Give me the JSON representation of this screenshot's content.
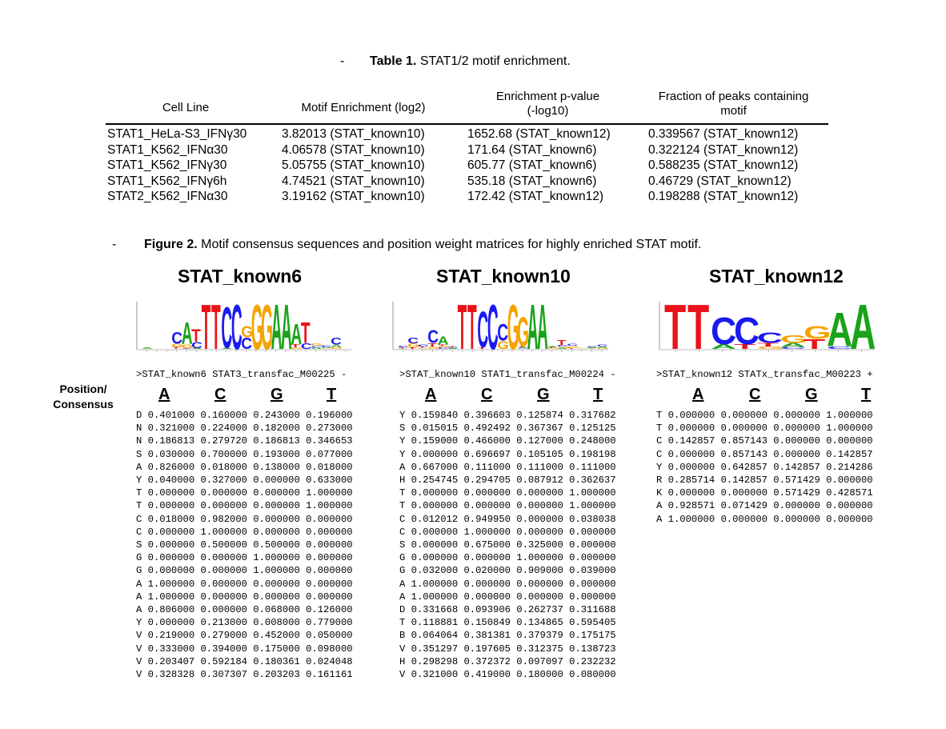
{
  "table1": {
    "dash": "-",
    "caption_bold": "Table 1.",
    "caption_text": "STAT1/2 motif enrichment.",
    "headers": [
      "Cell Line",
      "Motif Enrichment (log2)",
      "Enrichment p-value\n(-log10)",
      "Fraction of peaks containing\nmotif"
    ],
    "rows": [
      [
        "STAT1_HeLa-S3_IFNγ30",
        "3.82013 (STAT_known10)",
        "1652.68 (STAT_known12)",
        "0.339567 (STAT_known12)"
      ],
      [
        "STAT1_K562_IFNα30",
        "4.06578 (STAT_known10)",
        "171.64 (STAT_known6)",
        "0.322124 (STAT_known12)"
      ],
      [
        "STAT1_K562_IFNγ30",
        "5.05755 (STAT_known10)",
        "605.77 (STAT_known6)",
        "0.588235 (STAT_known12)"
      ],
      [
        "STAT1_K562_IFNγ6h",
        "4.74521 (STAT_known10)",
        "535.18 (STAT_known6)",
        "0.46729 (STAT_known12)"
      ],
      [
        "STAT2_K562_IFNα30",
        "3.19162 (STAT_known10)",
        "172.42 (STAT_known12)",
        "0.198288 (STAT_known12)"
      ]
    ]
  },
  "figure2": {
    "dash": "-",
    "caption_bold": "Figure 2.",
    "caption_text": "Motif consensus sequences and position weight matrices for highly enriched STAT motif.",
    "position_label": "Position/\nConsensus",
    "bases": [
      "A",
      "C",
      "G",
      "T"
    ],
    "colors": {
      "A": "#1aa31a",
      "C": "#1a1af0",
      "G": "#f5a300",
      "T": "#e8141a"
    },
    "motifs": [
      {
        "title": "STAT_known6",
        "header": ">STAT_known6 STAT3_transfac_M00225 -",
        "logo": "CATTCCGGAAATC",
        "rows": [
          "D 0.401000 0.160000 0.243000 0.196000",
          "N 0.321000 0.224000 0.182000 0.273000",
          "N 0.186813 0.279720 0.186813 0.346653",
          "S 0.030000 0.700000 0.193000 0.077000",
          "A 0.826000 0.018000 0.138000 0.018000",
          "Y 0.040000 0.327000 0.000000 0.633000",
          "T 0.000000 0.000000 0.000000 1.000000",
          "T 0.000000 0.000000 0.000000 1.000000",
          "C 0.018000 0.982000 0.000000 0.000000",
          "C 0.000000 1.000000 0.000000 0.000000",
          "S 0.000000 0.500000 0.500000 0.000000",
          "G 0.000000 0.000000 1.000000 0.000000",
          "G 0.000000 0.000000 1.000000 0.000000",
          "A 1.000000 0.000000 0.000000 0.000000",
          "A 1.000000 0.000000 0.000000 0.000000",
          "A 0.806000 0.000000 0.068000 0.126000",
          "Y 0.000000 0.213000 0.008000 0.779000",
          "V 0.219000 0.279000 0.452000 0.050000",
          "V 0.333000 0.394000 0.175000 0.098000",
          "V 0.203407 0.592184 0.180361 0.024048",
          "V 0.328328 0.307307 0.203203 0.161161"
        ]
      },
      {
        "title": "STAT_known10",
        "header": ">STAT_known10 STAT1_transfac_M00224 -",
        "logo": "CATTCCGGAA",
        "rows": [
          "Y 0.159840 0.396603 0.125874 0.317682",
          "S 0.015015 0.492492 0.367367 0.125125",
          "Y 0.159000 0.466000 0.127000 0.248000",
          "Y 0.000000 0.696697 0.105105 0.198198",
          "A 0.667000 0.111000 0.111000 0.111000",
          "H 0.254745 0.294705 0.087912 0.362637",
          "T 0.000000 0.000000 0.000000 1.000000",
          "T 0.000000 0.000000 0.000000 1.000000",
          "C 0.012012 0.949950 0.000000 0.038038",
          "C 0.000000 1.000000 0.000000 0.000000",
          "S 0.000000 0.675000 0.325000 0.000000",
          "G 0.000000 0.000000 1.000000 0.000000",
          "G 0.032000 0.020000 0.909000 0.039000",
          "A 1.000000 0.000000 0.000000 0.000000",
          "A 1.000000 0.000000 0.000000 0.000000",
          "D 0.331668 0.093906 0.262737 0.311688",
          "T 0.118881 0.150849 0.134865 0.595405",
          "B 0.064064 0.381381 0.379379 0.175175",
          "V 0.351297 0.197605 0.312375 0.138723",
          "H 0.298298 0.372372 0.097097 0.232232",
          "V 0.321000 0.419000 0.180000 0.080000"
        ]
      },
      {
        "title": "STAT_known12",
        "header": ">STAT_known12 STATx_transfac_M00223 +",
        "logo": "TTCCCGGAA",
        "rows": [
          "T 0.000000 0.000000 0.000000 1.000000",
          "T 0.000000 0.000000 0.000000 1.000000",
          "C 0.142857 0.857143 0.000000 0.000000",
          "C 0.000000 0.857143 0.000000 0.142857",
          "Y 0.000000 0.642857 0.142857 0.214286",
          "R 0.285714 0.142857 0.571429 0.000000",
          "K 0.000000 0.000000 0.571429 0.428571",
          "A 0.928571 0.071429 0.000000 0.000000",
          "A 1.000000 0.000000 0.000000 0.000000"
        ]
      }
    ]
  }
}
